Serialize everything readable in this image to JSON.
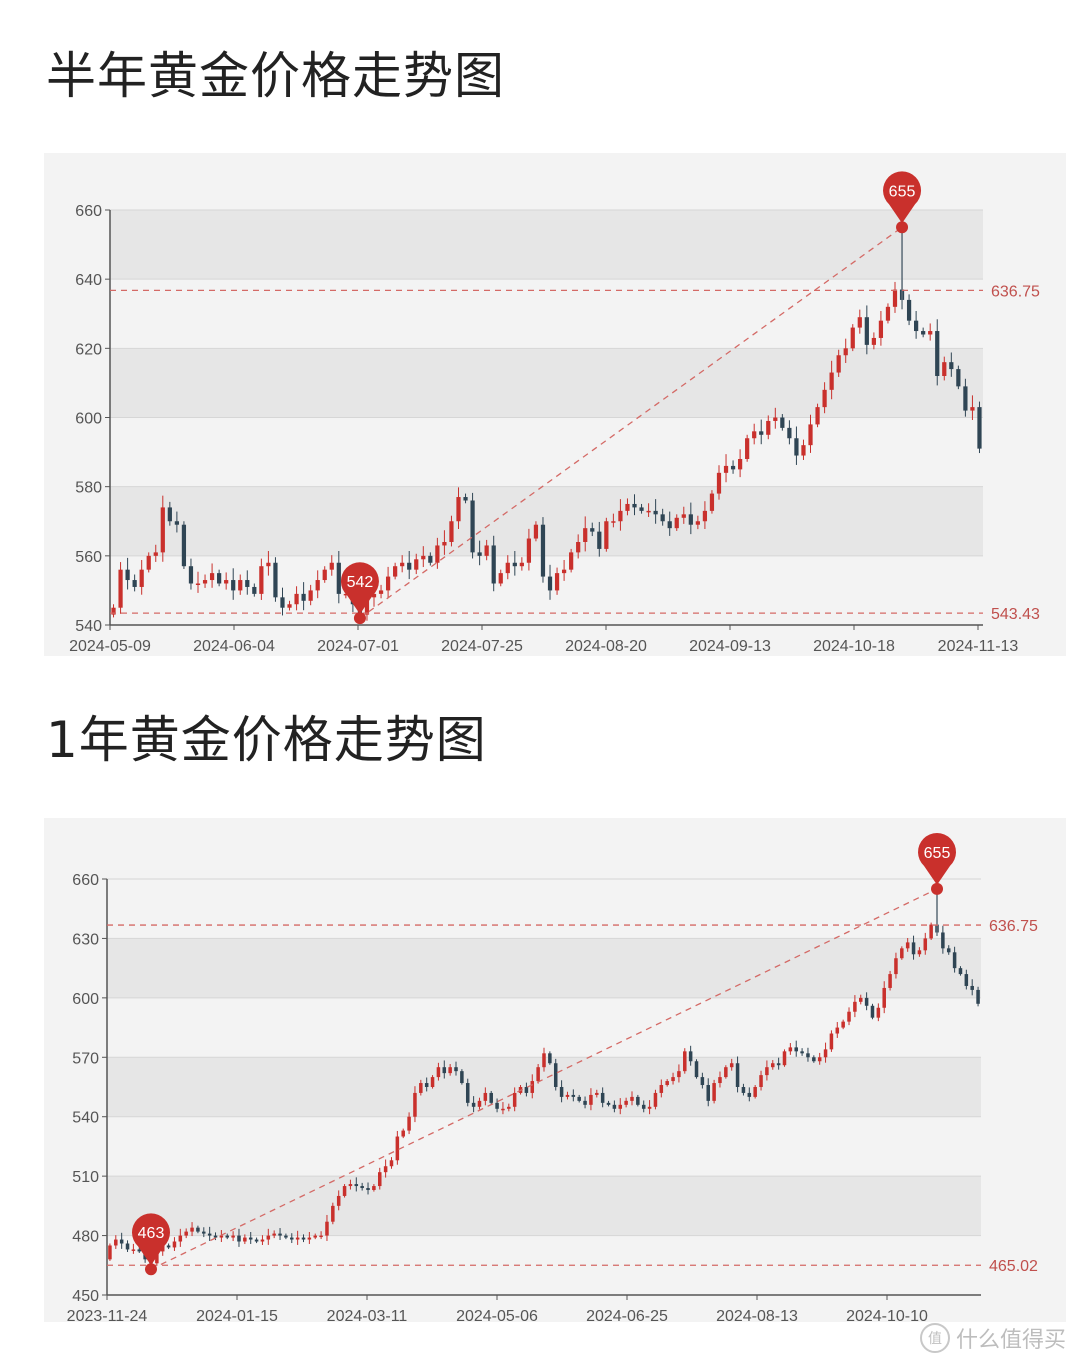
{
  "titles": {
    "half_year": "半年黄金价格走势图",
    "one_year": "1年黄金价格走势图"
  },
  "watermark": {
    "text": "什么值得买",
    "logo_glyph": "值"
  },
  "colors": {
    "up": "#c9302c",
    "down": "#2f4554",
    "marker": "#c9302c",
    "band_dark": "#e6e6e6",
    "band_light": "#f3f3f3"
  },
  "chart_data": [
    {
      "type": "candlestick",
      "title": "半年黄金价格走势图",
      "ylim": [
        540,
        660
      ],
      "yticks": [
        540,
        560,
        580,
        600,
        620,
        640,
        660
      ],
      "xticks": [
        "2024-05-09",
        "2024-06-04",
        "2024-07-01",
        "2024-07-25",
        "2024-08-20",
        "2024-09-13",
        "2024-10-18",
        "2024-11-13"
      ],
      "first_open": 543,
      "closes": [
        545,
        556,
        553,
        551,
        556,
        560,
        561,
        574,
        570,
        569,
        557,
        552,
        552,
        553,
        555,
        552,
        553,
        550,
        553,
        551,
        549,
        557,
        558,
        548,
        545,
        546,
        549,
        547,
        550,
        553,
        556,
        558,
        549,
        549,
        546,
        543,
        548,
        549,
        550,
        554,
        557,
        558,
        556,
        559,
        560,
        558,
        563,
        564,
        570,
        577,
        576,
        561,
        560,
        563,
        552,
        555,
        558,
        557,
        558,
        565,
        569,
        554,
        550,
        555,
        556,
        561,
        564,
        568,
        567,
        562,
        570,
        570,
        573,
        575,
        574,
        573,
        573,
        572,
        570,
        568,
        571,
        572,
        569,
        570,
        573,
        578,
        584,
        586,
        585,
        588,
        594,
        596,
        595,
        599,
        600,
        597,
        594,
        589,
        592,
        598,
        603,
        608,
        613,
        618,
        620,
        626,
        629,
        621,
        623,
        628,
        632,
        637,
        634,
        628,
        625,
        624,
        625,
        612,
        616,
        614,
        609,
        602,
        603,
        591
      ],
      "max_marker": {
        "label": "655",
        "value": 655
      },
      "min_marker": {
        "label": "542",
        "value": 542
      },
      "ref_lines": [
        {
          "label": "636.75",
          "value": 636.75
        },
        {
          "label": "543.43",
          "value": 543.43
        }
      ],
      "grid": true
    },
    {
      "type": "candlestick",
      "title": "1年黄金价格走势图",
      "ylim": [
        450,
        660
      ],
      "yticks": [
        450,
        480,
        510,
        540,
        570,
        600,
        630,
        660
      ],
      "xticks": [
        "2023-11-24",
        "2024-01-15",
        "2024-03-11",
        "2024-05-06",
        "2024-06-25",
        "2024-08-13",
        "2024-10-10"
      ],
      "first_open": 468,
      "closes": [
        475,
        478,
        476,
        473,
        473,
        472,
        468,
        466,
        472,
        475,
        474,
        477,
        480,
        482,
        484,
        482,
        481,
        480,
        479,
        480,
        479,
        480,
        477,
        479,
        478,
        477,
        478,
        480,
        481,
        480,
        479,
        478,
        479,
        478,
        479,
        480,
        480,
        487,
        495,
        500,
        505,
        506,
        505,
        504,
        503,
        505,
        512,
        515,
        518,
        530,
        533,
        540,
        552,
        557,
        555,
        560,
        565,
        562,
        565,
        563,
        557,
        547,
        545,
        548,
        552,
        547,
        544,
        544,
        545,
        552,
        555,
        552,
        558,
        565,
        572,
        567,
        555,
        550,
        551,
        550,
        548,
        546,
        551,
        552,
        547,
        546,
        544,
        546,
        548,
        550,
        546,
        544,
        545,
        552,
        556,
        558,
        560,
        563,
        573,
        568,
        560,
        556,
        548,
        557,
        560,
        565,
        567,
        555,
        552,
        550,
        555,
        561,
        565,
        567,
        566,
        573,
        575,
        573,
        572,
        570,
        568,
        570,
        574,
        582,
        585,
        588,
        593,
        598,
        600,
        596,
        590,
        595,
        605,
        612,
        620,
        625,
        628,
        622,
        624,
        630,
        637,
        633,
        625,
        623,
        615,
        612,
        606,
        604,
        597
      ],
      "max_marker": {
        "label": "655",
        "value": 655
      },
      "min_marker": {
        "label": "463",
        "value": 463
      },
      "ref_lines": [
        {
          "label": "636.75",
          "value": 636.75
        },
        {
          "label": "465.02",
          "value": 465.02
        }
      ],
      "grid": true
    }
  ]
}
